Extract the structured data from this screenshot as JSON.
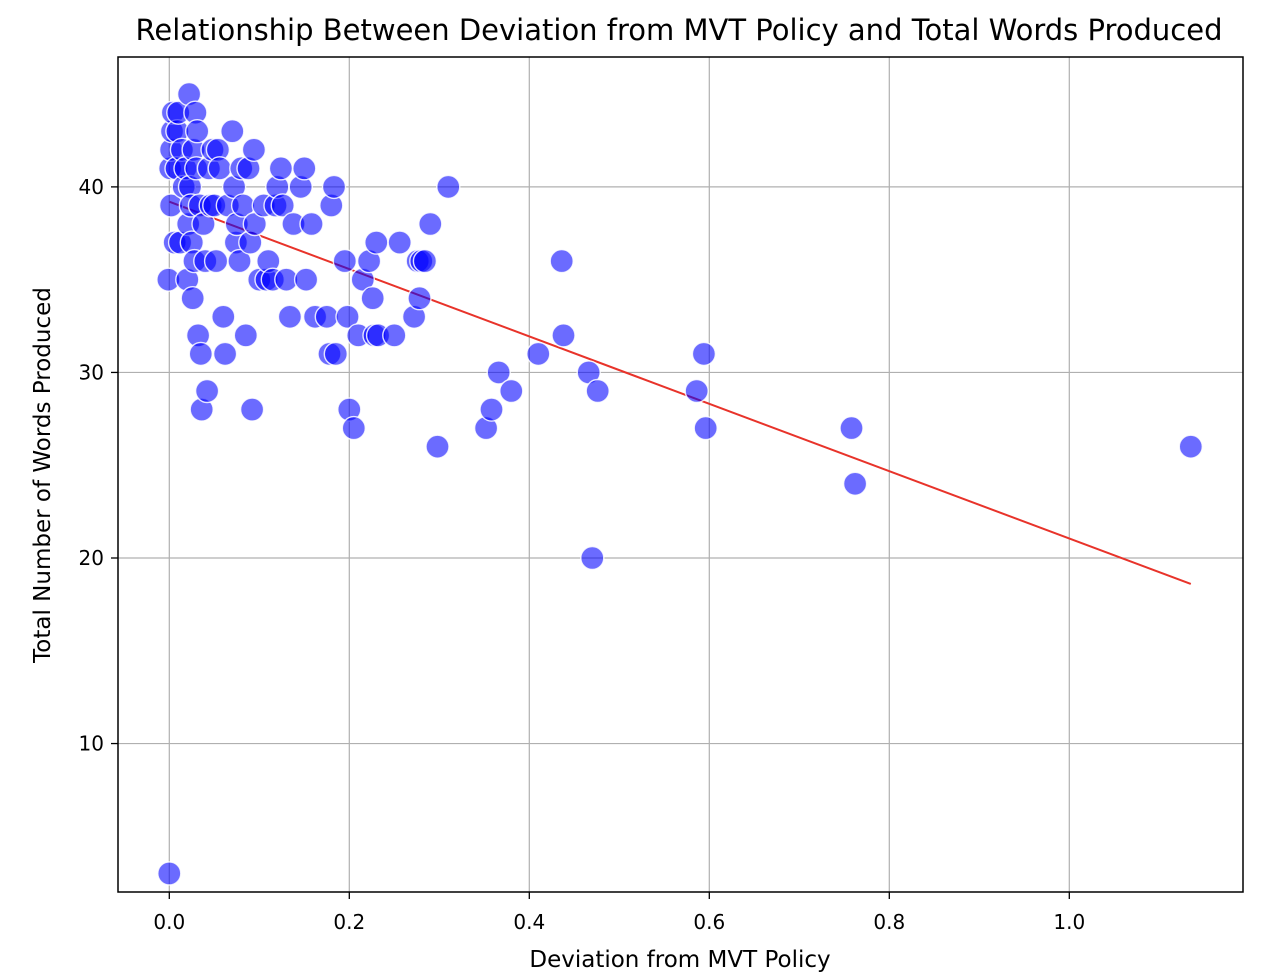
{
  "chart_data": {
    "type": "scatter",
    "title": "Relationship Between Deviation from MVT Policy and Total Words Produced",
    "xlabel": "Deviation from MVT Policy",
    "ylabel": "Total Number of Words Produced",
    "xlim": [
      -0.057,
      1.193
    ],
    "ylim": [
      2,
      47
    ],
    "xticks": [
      0.0,
      0.2,
      0.4,
      0.6,
      0.8,
      1.0
    ],
    "xtick_labels": [
      "0.0",
      "0.2",
      "0.4",
      "0.6",
      "0.8",
      "1.0"
    ],
    "yticks": [
      10,
      20,
      30,
      40
    ],
    "ytick_labels": [
      "10",
      "20",
      "30",
      "40"
    ],
    "grid": true,
    "colors": {
      "points": "#0000ff",
      "trend_line": "#e8332a"
    },
    "series": [
      {
        "kind": "points",
        "points": [
          [
            0.0,
            3
          ],
          [
            -0.001,
            35
          ],
          [
            0.002,
            39
          ],
          [
            0.001,
            41
          ],
          [
            0.002,
            42
          ],
          [
            0.003,
            43
          ],
          [
            0.004,
            44
          ],
          [
            0.006,
            37
          ],
          [
            0.008,
            41
          ],
          [
            0.009,
            43
          ],
          [
            0.01,
            44
          ],
          [
            0.012,
            37
          ],
          [
            0.014,
            42
          ],
          [
            0.016,
            40
          ],
          [
            0.018,
            41
          ],
          [
            0.02,
            35
          ],
          [
            0.021,
            38
          ],
          [
            0.022,
            45
          ],
          [
            0.023,
            40
          ],
          [
            0.024,
            39
          ],
          [
            0.025,
            37
          ],
          [
            0.026,
            34
          ],
          [
            0.027,
            42
          ],
          [
            0.028,
            36
          ],
          [
            0.029,
            44
          ],
          [
            0.03,
            41
          ],
          [
            0.031,
            43
          ],
          [
            0.032,
            32
          ],
          [
            0.034,
            39
          ],
          [
            0.035,
            31
          ],
          [
            0.036,
            28
          ],
          [
            0.038,
            38
          ],
          [
            0.04,
            36
          ],
          [
            0.042,
            29
          ],
          [
            0.044,
            41
          ],
          [
            0.046,
            39
          ],
          [
            0.048,
            42
          ],
          [
            0.05,
            39
          ],
          [
            0.052,
            36
          ],
          [
            0.054,
            42
          ],
          [
            0.056,
            41
          ],
          [
            0.06,
            33
          ],
          [
            0.062,
            31
          ],
          [
            0.065,
            39
          ],
          [
            0.07,
            43
          ],
          [
            0.072,
            40
          ],
          [
            0.074,
            37
          ],
          [
            0.075,
            38
          ],
          [
            0.078,
            36
          ],
          [
            0.08,
            41
          ],
          [
            0.082,
            39
          ],
          [
            0.085,
            32
          ],
          [
            0.088,
            41
          ],
          [
            0.09,
            37
          ],
          [
            0.092,
            28
          ],
          [
            0.094,
            42
          ],
          [
            0.095,
            38
          ],
          [
            0.1,
            35
          ],
          [
            0.105,
            39
          ],
          [
            0.108,
            35
          ],
          [
            0.11,
            36
          ],
          [
            0.115,
            35
          ],
          [
            0.118,
            39
          ],
          [
            0.12,
            40
          ],
          [
            0.124,
            41
          ],
          [
            0.126,
            39
          ],
          [
            0.13,
            35
          ],
          [
            0.134,
            33
          ],
          [
            0.138,
            38
          ],
          [
            0.146,
            40
          ],
          [
            0.15,
            41
          ],
          [
            0.152,
            35
          ],
          [
            0.158,
            38
          ],
          [
            0.162,
            33
          ],
          [
            0.175,
            33
          ],
          [
            0.178,
            31
          ],
          [
            0.18,
            39
          ],
          [
            0.183,
            40
          ],
          [
            0.185,
            31
          ],
          [
            0.195,
            36
          ],
          [
            0.198,
            33
          ],
          [
            0.2,
            28
          ],
          [
            0.205,
            27
          ],
          [
            0.21,
            32
          ],
          [
            0.215,
            35
          ],
          [
            0.222,
            36
          ],
          [
            0.226,
            34
          ],
          [
            0.228,
            32
          ],
          [
            0.23,
            37
          ],
          [
            0.232,
            32
          ],
          [
            0.25,
            32
          ],
          [
            0.256,
            37
          ],
          [
            0.272,
            33
          ],
          [
            0.276,
            36
          ],
          [
            0.278,
            34
          ],
          [
            0.28,
            36
          ],
          [
            0.284,
            36
          ],
          [
            0.29,
            38
          ],
          [
            0.298,
            26
          ],
          [
            0.31,
            40
          ],
          [
            0.352,
            27
          ],
          [
            0.358,
            28
          ],
          [
            0.366,
            30
          ],
          [
            0.38,
            29
          ],
          [
            0.41,
            31
          ],
          [
            0.436,
            36
          ],
          [
            0.438,
            32
          ],
          [
            0.466,
            30
          ],
          [
            0.47,
            20
          ],
          [
            0.476,
            29
          ],
          [
            0.586,
            29
          ],
          [
            0.594,
            31
          ],
          [
            0.596,
            27
          ],
          [
            0.758,
            27
          ],
          [
            0.762,
            24
          ],
          [
            1.135,
            26
          ]
        ]
      },
      {
        "kind": "trend_line",
        "points": [
          [
            0.0,
            39.2
          ],
          [
            1.135,
            18.6
          ]
        ]
      }
    ]
  }
}
